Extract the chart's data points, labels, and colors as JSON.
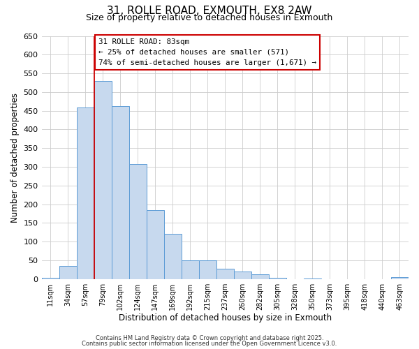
{
  "title": "31, ROLLE ROAD, EXMOUTH, EX8 2AW",
  "subtitle": "Size of property relative to detached houses in Exmouth",
  "xlabel": "Distribution of detached houses by size in Exmouth",
  "ylabel": "Number of detached properties",
  "bin_labels": [
    "11sqm",
    "34sqm",
    "57sqm",
    "79sqm",
    "102sqm",
    "124sqm",
    "147sqm",
    "169sqm",
    "192sqm",
    "215sqm",
    "237sqm",
    "260sqm",
    "282sqm",
    "305sqm",
    "328sqm",
    "350sqm",
    "373sqm",
    "395sqm",
    "418sqm",
    "440sqm",
    "463sqm"
  ],
  "bar_values": [
    3,
    35,
    458,
    530,
    463,
    307,
    185,
    120,
    49,
    49,
    27,
    20,
    13,
    3,
    0,
    2,
    0,
    0,
    0,
    0,
    5
  ],
  "bar_color": "#c7d9ee",
  "bar_edge_color": "#5b9bd5",
  "property_line_x": 3,
  "property_line_color": "#cc0000",
  "annotation_line1": "31 ROLLE ROAD: 83sqm",
  "annotation_line2": "← 25% of detached houses are smaller (571)",
  "annotation_line3": "74% of semi-detached houses are larger (1,671) →",
  "ylim": [
    0,
    650
  ],
  "yticks": [
    0,
    50,
    100,
    150,
    200,
    250,
    300,
    350,
    400,
    450,
    500,
    550,
    600,
    650
  ],
  "footer_line1": "Contains HM Land Registry data © Crown copyright and database right 2025.",
  "footer_line2": "Contains public sector information licensed under the Open Government Licence v3.0.",
  "bg_color": "#ffffff",
  "grid_color": "#cccccc"
}
